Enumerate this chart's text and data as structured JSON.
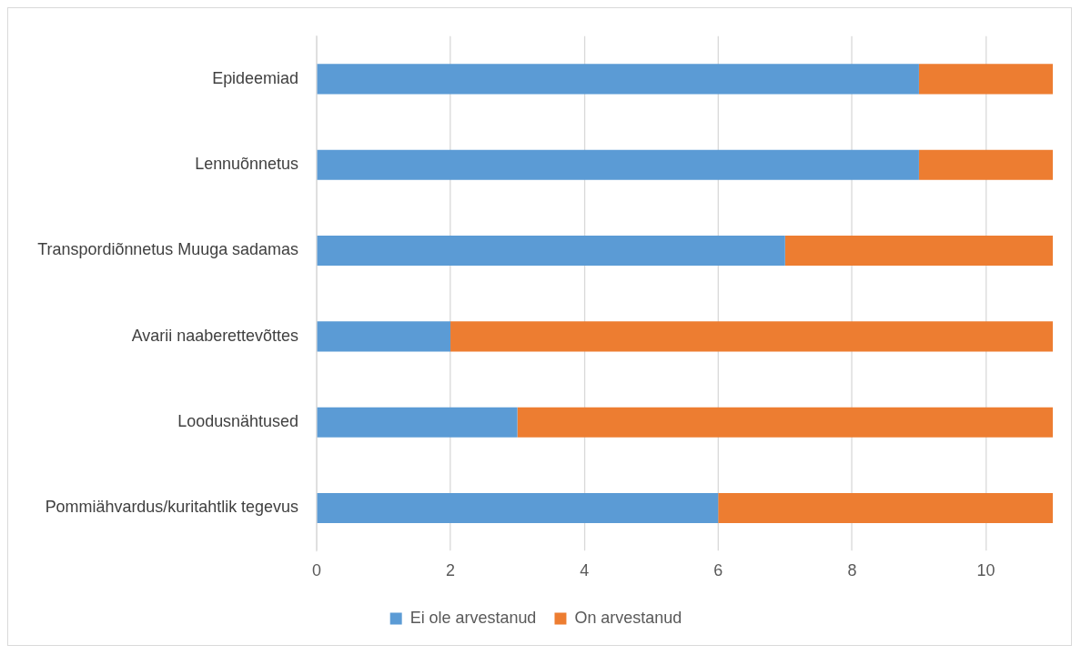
{
  "chart_data": {
    "type": "bar",
    "orientation": "horizontal",
    "stacked": true,
    "categories": [
      "Epideemiad",
      "Lennuõnnetus",
      "Transpordiõnnetus Muuga sadamas",
      "Avarii naaberettevõttes",
      "Loodusnähtused",
      "Pommiähvardus/kuritahtlik tegevus"
    ],
    "series": [
      {
        "name": "Ei ole arvestanud",
        "color": "#5b9bd5",
        "values": [
          9,
          9,
          7,
          2,
          3,
          6
        ]
      },
      {
        "name": "On arvestanud",
        "color": "#ed7d31",
        "values": [
          2,
          2,
          4,
          9,
          8,
          5
        ]
      }
    ],
    "xlim": [
      0,
      11
    ],
    "xticks": [
      0,
      2,
      4,
      6,
      8,
      10
    ],
    "grid": "x",
    "legend": "bottom"
  }
}
